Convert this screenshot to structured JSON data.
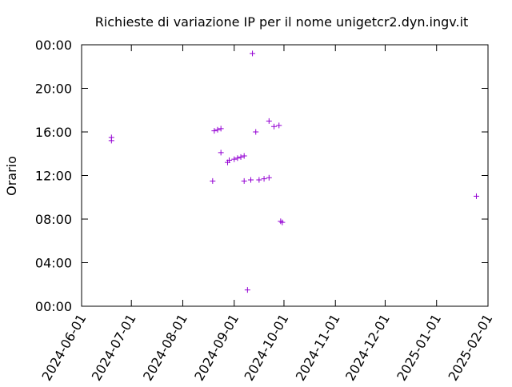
{
  "chart_data": {
    "type": "scatter",
    "title": "Richieste di variazione IP per il nome unigetcr2.dyn.ingv.it",
    "xlabel": "",
    "ylabel": "Orario",
    "x_axis_type": "date",
    "xlim": [
      "2024-06-01",
      "2025-02-01"
    ],
    "ylim": [
      0,
      24
    ],
    "x_ticks": [
      "2024-06-01",
      "2024-07-01",
      "2024-08-01",
      "2024-09-01",
      "2024-10-01",
      "2024-11-01",
      "2024-12-01",
      "2025-01-01",
      "2025-02-01"
    ],
    "y_ticks": [
      "00:00",
      "04:00",
      "08:00",
      "12:00",
      "16:00",
      "20:00",
      "00:00"
    ],
    "marker": "+",
    "series_color": "#9400d3",
    "grid": false,
    "series": [
      {
        "points": [
          {
            "x": "2024-06-19",
            "y": 15.5
          },
          {
            "x": "2024-06-19",
            "y": 15.2
          },
          {
            "x": "2024-08-19",
            "y": 11.5
          },
          {
            "x": "2024-08-20",
            "y": 16.1
          },
          {
            "x": "2024-08-22",
            "y": 16.2
          },
          {
            "x": "2024-08-24",
            "y": 16.3
          },
          {
            "x": "2024-08-24",
            "y": 14.1
          },
          {
            "x": "2024-08-28",
            "y": 13.2
          },
          {
            "x": "2024-08-29",
            "y": 13.4
          },
          {
            "x": "2024-09-01",
            "y": 13.5
          },
          {
            "x": "2024-09-03",
            "y": 13.6
          },
          {
            "x": "2024-09-05",
            "y": 13.7
          },
          {
            "x": "2024-09-07",
            "y": 13.8
          },
          {
            "x": "2024-09-07",
            "y": 11.5
          },
          {
            "x": "2024-09-09",
            "y": 1.5
          },
          {
            "x": "2024-09-11",
            "y": 11.6
          },
          {
            "x": "2024-09-12",
            "y": 23.2
          },
          {
            "x": "2024-09-14",
            "y": 16.0
          },
          {
            "x": "2024-09-16",
            "y": 11.6
          },
          {
            "x": "2024-09-19",
            "y": 11.7
          },
          {
            "x": "2024-09-22",
            "y": 17.0
          },
          {
            "x": "2024-09-22",
            "y": 11.8
          },
          {
            "x": "2024-09-25",
            "y": 16.5
          },
          {
            "x": "2024-09-28",
            "y": 16.6
          },
          {
            "x": "2024-09-29",
            "y": 7.8
          },
          {
            "x": "2024-09-30",
            "y": 7.7
          },
          {
            "x": "2025-01-25",
            "y": 10.1
          }
        ]
      }
    ]
  }
}
